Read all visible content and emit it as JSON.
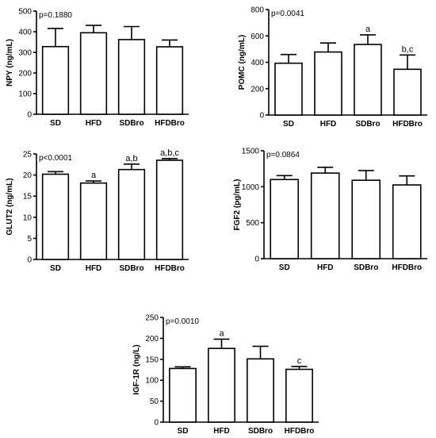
{
  "chart_data": [
    {
      "type": "bar",
      "ylabel": "NPY (ng/mL)",
      "annotation": "p=0.1880",
      "categories": [
        "SD",
        "HFD",
        "SDBro",
        "HFDBro"
      ],
      "values": [
        328,
        395,
        362,
        327
      ],
      "errors": [
        88,
        36,
        63,
        33
      ],
      "labels": [
        "",
        "",
        "",
        ""
      ],
      "ylim": [
        0,
        500
      ],
      "yticks": [
        "0",
        "100",
        "200",
        "300",
        "400",
        "500"
      ]
    },
    {
      "type": "bar",
      "ylabel": "POMC (ng/mL)",
      "annotation": "p=0.0041",
      "categories": [
        "SD",
        "HFD",
        "SDBro",
        "HFDBro"
      ],
      "values": [
        393,
        478,
        535,
        347
      ],
      "errors": [
        66,
        68,
        73,
        108
      ],
      "labels": [
        "",
        "",
        "a",
        "b,c"
      ],
      "ylim": [
        0,
        800
      ],
      "yticks": [
        "0",
        "200",
        "400",
        "600",
        "800"
      ]
    },
    {
      "type": "bar",
      "ylabel": "GLUT2 (ng/mL)",
      "annotation": "p<0.0001",
      "categories": [
        "SD",
        "HFD",
        "SDBro",
        "HFDBro"
      ],
      "values": [
        20.2,
        18.1,
        21.3,
        23.5
      ],
      "errors": [
        0.6,
        0.5,
        1.3,
        0.4
      ],
      "labels": [
        "",
        "a",
        "a,b",
        "a,b,c"
      ],
      "ylim": [
        0,
        25
      ],
      "yticks": [
        "0",
        "5",
        "10",
        "15",
        "20",
        "25"
      ]
    },
    {
      "type": "bar",
      "ylabel": "FGF2 (pg/mL)",
      "annotation": "p=0.0864",
      "categories": [
        "SD",
        "HFD",
        "SDBro",
        "HFDBro"
      ],
      "values": [
        1100,
        1190,
        1090,
        1025
      ],
      "errors": [
        55,
        80,
        135,
        125
      ],
      "labels": [
        "",
        "",
        "",
        ""
      ],
      "ylim": [
        0,
        1500
      ],
      "yticks": [
        "0",
        "500",
        "1000",
        "1500"
      ]
    },
    {
      "type": "bar",
      "ylabel": "IGF-1R (ng/L)",
      "annotation": "p=0.0010",
      "categories": [
        "SD",
        "HFD",
        "SDBro",
        "HFDBro"
      ],
      "values": [
        128,
        176,
        151,
        126
      ],
      "errors": [
        4,
        22,
        30,
        7
      ],
      "labels": [
        "",
        "a",
        "",
        "c"
      ],
      "ylim": [
        0,
        250
      ],
      "yticks": [
        "0",
        "50",
        "100",
        "150",
        "200",
        "250"
      ]
    }
  ]
}
